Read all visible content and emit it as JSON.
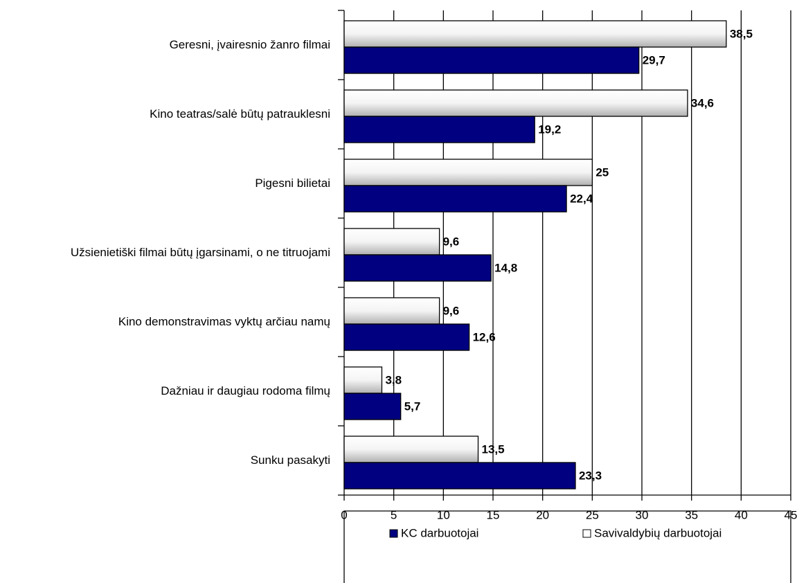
{
  "chart_data": {
    "type": "hbar",
    "categories": [
      "Geresni, įvairesnio žanro filmai",
      "Kino teatras/salė būtų patrauklesni",
      "Pigesni bilietai",
      "Užsienietiški filmai būtų įgarsinami, o ne titruojami",
      "Kino demonstravimas vyktų arčiau namų",
      "Dažniau ir daugiau rodoma filmų",
      "Sunku pasakyti"
    ],
    "series": [
      {
        "name": "KC darbuotojai",
        "color": "#000080",
        "values": [
          29.7,
          19.2,
          22.4,
          14.8,
          12.6,
          5.7,
          23.3
        ],
        "value_labels": [
          "29,7",
          "19,2",
          "22,4",
          "14,8",
          "12,6",
          "5,7",
          "23,3"
        ]
      },
      {
        "name": "Savivaldybių darbuotojai",
        "color": "#c8c8c8",
        "values": [
          38.5,
          34.6,
          25,
          9.6,
          9.6,
          3.8,
          13.5
        ],
        "value_labels": [
          "38,5",
          "34,6",
          "25",
          "9,6",
          "9,6",
          "3,8",
          "13,5"
        ]
      }
    ],
    "xlim": [
      0,
      45
    ],
    "xticks": [
      0,
      5,
      10,
      15,
      20,
      25,
      30,
      35,
      40,
      45
    ],
    "grid": true,
    "legend": "bottom"
  }
}
